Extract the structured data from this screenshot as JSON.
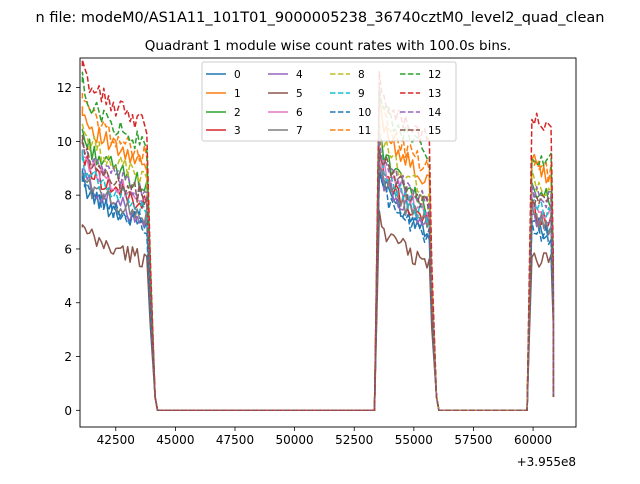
{
  "chart_data": {
    "type": "line",
    "suptitle": "n file: modeM0/AS1A11_101T01_9000005238_36740cztM0_level2_quad_clean",
    "title": "Quadrant 1 module wise count rates with 100.0s bins.",
    "xlabel": "",
    "ylabel": "",
    "offset_label": "+3.955e8",
    "xlim": [
      41000,
      61800
    ],
    "ylim": [
      -0.62,
      13.1
    ],
    "x_ticks": [
      {
        "value": 42500,
        "label": "42500"
      },
      {
        "value": 45000,
        "label": "45000"
      },
      {
        "value": 47500,
        "label": "47500"
      },
      {
        "value": 50000,
        "label": "50000"
      },
      {
        "value": 52500,
        "label": "52500"
      },
      {
        "value": 55000,
        "label": "55000"
      },
      {
        "value": 57500,
        "label": "57500"
      },
      {
        "value": 60000,
        "label": "60000"
      }
    ],
    "y_ticks": [
      {
        "value": 0,
        "label": "0"
      },
      {
        "value": 2,
        "label": "2"
      },
      {
        "value": 4,
        "label": "4"
      },
      {
        "value": 6,
        "label": "6"
      },
      {
        "value": 8,
        "label": "8"
      },
      {
        "value": 10,
        "label": "10"
      },
      {
        "value": 12,
        "label": "12"
      }
    ],
    "legend": {
      "position": "upper center",
      "columns": 4
    },
    "segments": [
      {
        "x_start": 41100,
        "x_end": 43850,
        "dip_end": 44150,
        "step": 100
      },
      {
        "x_start": 53550,
        "x_end": 55650,
        "dip_end": 55950,
        "step": 100
      },
      {
        "x_start": 59950,
        "x_end": 60750,
        "dip_end": 60850,
        "step": 100
      }
    ],
    "series": [
      {
        "name": "0",
        "color": "#1f77b4",
        "dashed": false,
        "levels": [
          8.6,
          6.9,
          9.0,
          6.7,
          7.2,
          6.6
        ]
      },
      {
        "name": "1",
        "color": "#ff7f0e",
        "dashed": false,
        "levels": [
          11.3,
          9.0,
          11.5,
          8.4,
          9.5,
          8.6
        ]
      },
      {
        "name": "2",
        "color": "#2ca02c",
        "dashed": false,
        "levels": [
          10.4,
          8.3,
          10.2,
          7.5,
          8.4,
          7.8
        ]
      },
      {
        "name": "3",
        "color": "#d62728",
        "dashed": false,
        "levels": [
          9.6,
          7.6,
          9.5,
          7.0,
          7.6,
          7.0
        ]
      },
      {
        "name": "4",
        "color": "#9467bd",
        "dashed": false,
        "levels": [
          9.0,
          7.1,
          9.1,
          6.9,
          7.4,
          6.8
        ]
      },
      {
        "name": "5",
        "color": "#8c564b",
        "dashed": false,
        "levels": [
          6.8,
          5.6,
          7.3,
          5.4,
          5.9,
          5.5
        ]
      },
      {
        "name": "6",
        "color": "#e377c2",
        "dashed": false,
        "levels": [
          9.7,
          7.9,
          9.6,
          7.2,
          7.9,
          7.3
        ]
      },
      {
        "name": "7",
        "color": "#7f7f7f",
        "dashed": false,
        "levels": [
          8.8,
          7.2,
          9.2,
          6.9,
          7.3,
          6.8
        ]
      },
      {
        "name": "8",
        "color": "#bcbd22",
        "dashed": true,
        "levels": [
          10.6,
          8.6,
          10.6,
          8.0,
          8.6,
          8.1
        ]
      },
      {
        "name": "9",
        "color": "#17becf",
        "dashed": true,
        "levels": [
          9.3,
          7.6,
          9.6,
          7.1,
          7.8,
          7.2
        ]
      },
      {
        "name": "10",
        "color": "#1f77b4",
        "dashed": true,
        "levels": [
          8.5,
          6.9,
          8.8,
          6.4,
          7.0,
          6.5
        ]
      },
      {
        "name": "11",
        "color": "#ff7f0e",
        "dashed": true,
        "levels": [
          11.8,
          9.4,
          11.7,
          8.9,
          9.3,
          8.8
        ]
      },
      {
        "name": "12",
        "color": "#2ca02c",
        "dashed": true,
        "levels": [
          12.2,
          9.8,
          11.9,
          9.5,
          9.7,
          9.2
        ]
      },
      {
        "name": "13",
        "color": "#d62728",
        "dashed": true,
        "levels": [
          12.8,
          10.6,
          12.3,
          10.0,
          11.1,
          10.4
        ]
      },
      {
        "name": "14",
        "color": "#9467bd",
        "dashed": true,
        "levels": [
          10.0,
          8.0,
          10.1,
          7.6,
          8.2,
          7.8
        ]
      },
      {
        "name": "15",
        "color": "#8c564b",
        "dashed": true,
        "levels": [
          9.9,
          7.9,
          9.9,
          7.5,
          8.0,
          7.6
        ]
      }
    ]
  }
}
